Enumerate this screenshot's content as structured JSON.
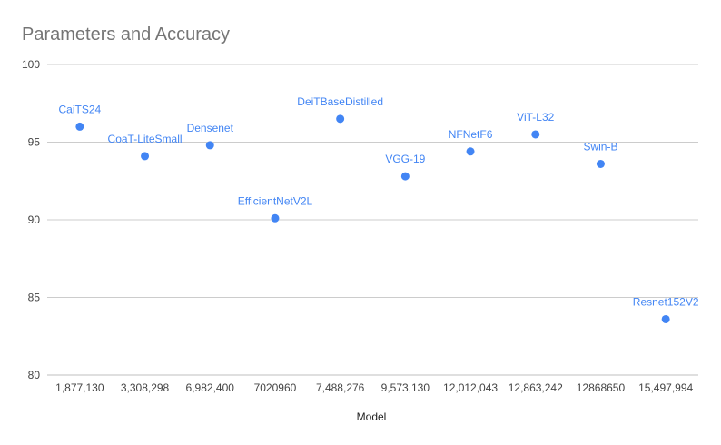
{
  "chart_data": {
    "type": "scatter",
    "title": "Parameters and Accuracy",
    "xlabel": "Model",
    "ylabel": "",
    "ylim": [
      80,
      100
    ],
    "yticks": [
      80,
      85,
      90,
      95,
      100
    ],
    "grid": true,
    "legend": "none",
    "categories": [
      "1,877,130",
      "3,308,298",
      "6,982,400",
      "7020960",
      "7,488,276",
      "9,573,130",
      "12,012,043",
      "12,863,242",
      "12868650",
      "15,497,994"
    ],
    "point_labels": [
      "CaiTS24",
      "CoaT-LiteSmall",
      "Densenet",
      "EfficientNetV2L",
      "DeiTBaseDistilled",
      "VGG-19",
      "NFNetF6",
      "ViT-L32",
      "Swin-B",
      "Resnet152V2"
    ],
    "values": [
      96.0,
      94.1,
      94.8,
      90.1,
      96.5,
      92.8,
      94.4,
      95.5,
      93.6,
      83.6
    ],
    "colors": {
      "point": "#4285f4",
      "label": "#4285f4",
      "grid": "#cccccc"
    }
  }
}
